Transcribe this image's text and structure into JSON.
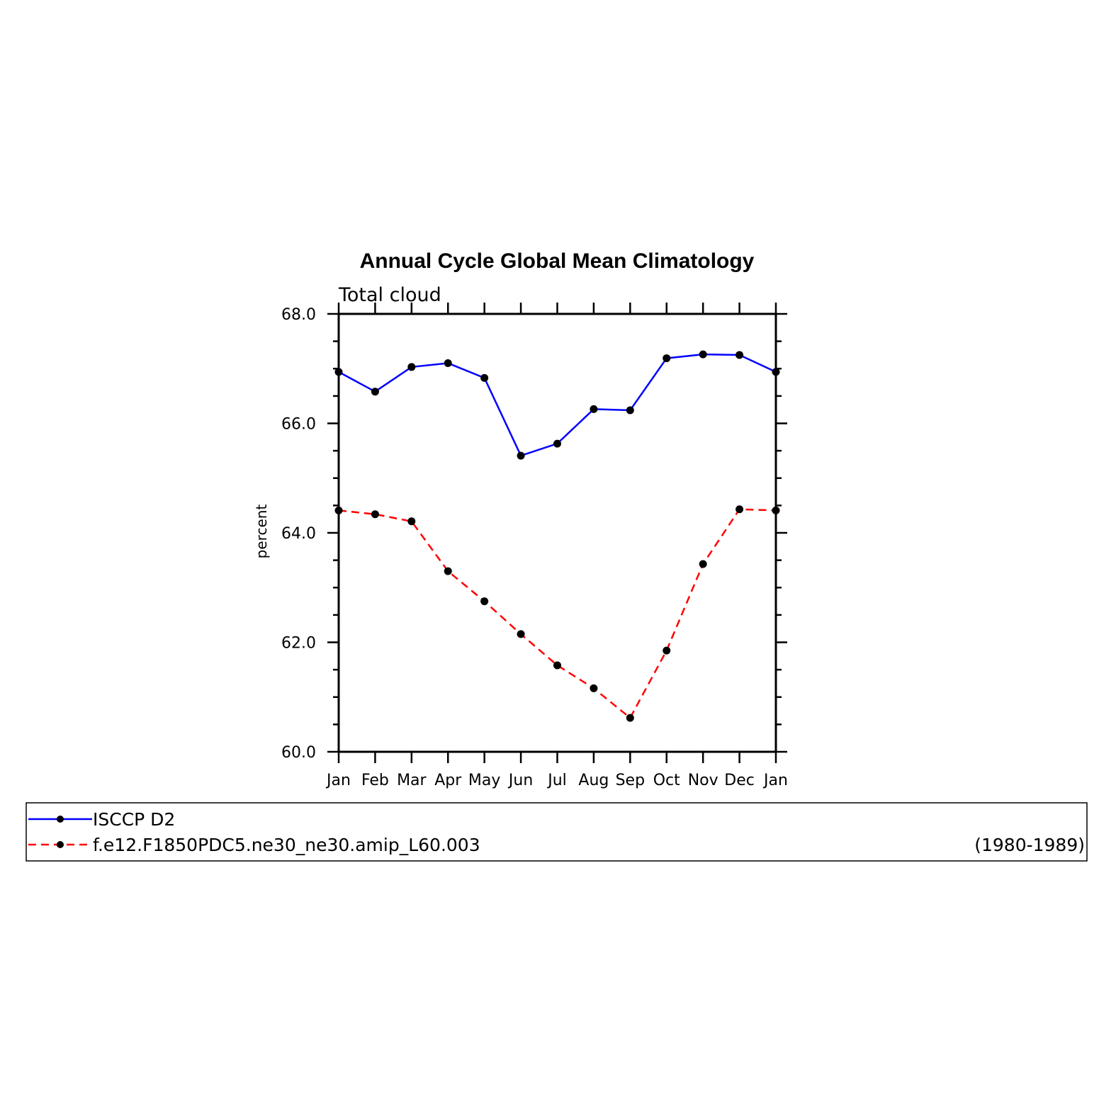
{
  "chart_data": {
    "type": "line",
    "title": "Annual Cycle Global Mean Climatology",
    "subtitle": "Total cloud",
    "xlabel": "",
    "ylabel": "percent",
    "categories": [
      "Jan",
      "Feb",
      "Mar",
      "Apr",
      "May",
      "Jun",
      "Jul",
      "Aug",
      "Sep",
      "Oct",
      "Nov",
      "Dec",
      "Jan"
    ],
    "ylim": [
      60.0,
      68.0
    ],
    "yticks": [
      "60.0",
      "62.0",
      "64.0",
      "66.0",
      "68.0"
    ],
    "grid": false,
    "series": [
      {
        "name": "ISCCP D2",
        "color": "#0000ff",
        "dash": "solid",
        "values": [
          66.94,
          66.58,
          67.03,
          67.1,
          66.83,
          65.41,
          65.63,
          66.26,
          66.24,
          67.19,
          67.26,
          67.25,
          66.94
        ]
      },
      {
        "name": "f.e12.F1850PDC5.ne30_ne30.amip_L60.003",
        "color": "#ff0000",
        "dash": "dashed",
        "values": [
          64.41,
          64.34,
          64.21,
          63.3,
          62.75,
          62.15,
          61.58,
          61.16,
          60.62,
          61.85,
          63.43,
          64.43,
          64.41
        ]
      }
    ],
    "legend": {
      "placement": "bottom",
      "period": "(1980-1989)"
    }
  }
}
